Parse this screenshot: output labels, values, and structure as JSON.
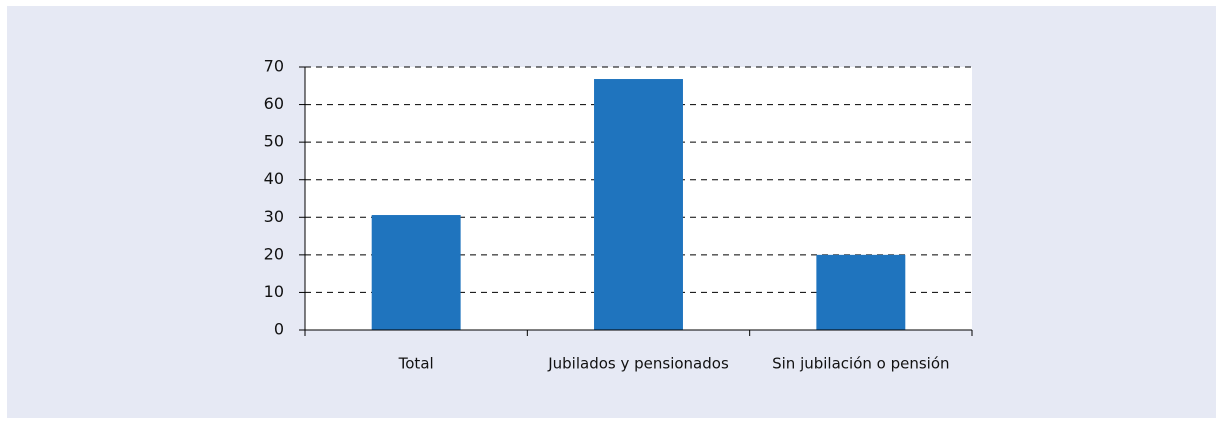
{
  "chart_data": {
    "type": "bar",
    "categories": [
      "Total",
      "Jubilados y pensionados",
      "Sin jubilación o pensión"
    ],
    "values": [
      30.6,
      66.8,
      20.0
    ],
    "color": "#1f74be",
    "ylim": [
      0,
      70
    ],
    "yticks": [
      0,
      10,
      20,
      30,
      40,
      50,
      60,
      70
    ],
    "grid": true
  }
}
